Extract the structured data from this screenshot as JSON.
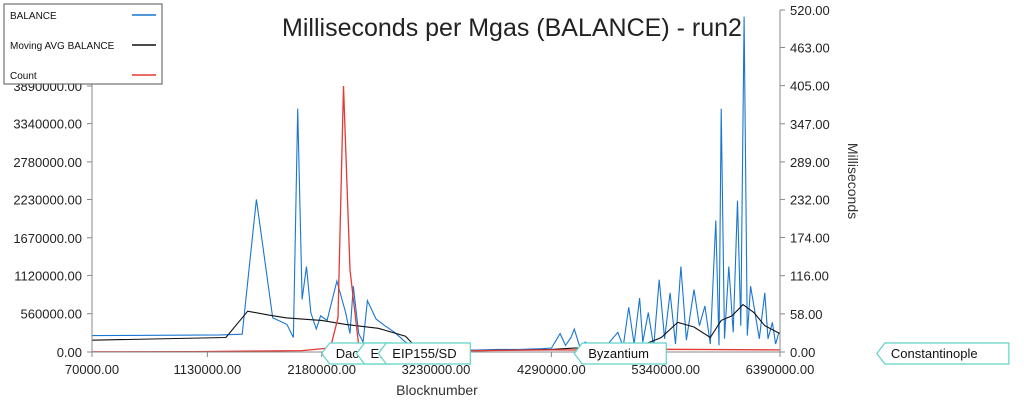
{
  "chart_data": {
    "type": "line",
    "title": "Milliseconds per Mgas (BALANCE) - run2",
    "xlabel": "Blocknumber",
    "ylabel_right": "Milliseconds",
    "ylabel_left": "",
    "xlim": [
      70000,
      6390000
    ],
    "ylim_left": [
      0,
      3890000
    ],
    "ylim_right": [
      0,
      520
    ],
    "x_ticks": [
      "70000.00",
      "1130000.00",
      "2180000.00",
      "3230000.00",
      "4290000.00",
      "5340000.00",
      "6390000.00"
    ],
    "y_left_ticks": [
      "0.00",
      "560000.00",
      "1120000.00",
      "1670000.00",
      "2230000.00",
      "2780000.00",
      "3340000.00",
      "3890000.00"
    ],
    "y_right_ticks": [
      "0.00",
      "58.00",
      "116.00",
      "174.00",
      "232.00",
      "289.00",
      "347.00",
      "405.00",
      "463.00",
      "520.00"
    ],
    "legend_position": "top-left",
    "series": [
      {
        "name": "BALANCE",
        "axis": "right",
        "color": "#1976d2",
        "points": [
          [
            70000,
            25
          ],
          [
            1250000,
            26
          ],
          [
            1450000,
            27
          ],
          [
            1580000,
            232
          ],
          [
            1730000,
            52
          ],
          [
            1860000,
            42
          ],
          [
            1920000,
            22
          ],
          [
            1960000,
            370
          ],
          [
            2000000,
            80
          ],
          [
            2040000,
            130
          ],
          [
            2080000,
            60
          ],
          [
            2130000,
            35
          ],
          [
            2170000,
            55
          ],
          [
            2230000,
            48
          ],
          [
            2320000,
            108
          ],
          [
            2400000,
            60
          ],
          [
            2440000,
            28
          ],
          [
            2470000,
            100
          ],
          [
            2520000,
            28
          ],
          [
            2560000,
            15
          ],
          [
            2600000,
            78
          ],
          [
            2680000,
            50
          ],
          [
            2760000,
            40
          ],
          [
            2850000,
            30
          ],
          [
            2950000,
            15
          ],
          [
            3060000,
            7
          ],
          [
            3230000,
            4
          ],
          [
            3400000,
            3
          ],
          [
            3600000,
            3
          ],
          [
            3800000,
            4
          ],
          [
            4000000,
            4
          ],
          [
            4200000,
            5
          ],
          [
            4290000,
            6
          ],
          [
            4370000,
            28
          ],
          [
            4420000,
            10
          ],
          [
            4470000,
            22
          ],
          [
            4500000,
            35
          ],
          [
            4550000,
            8
          ],
          [
            4600000,
            15
          ],
          [
            4700000,
            6
          ],
          [
            4800000,
            10
          ],
          [
            4900000,
            30
          ],
          [
            4950000,
            8
          ],
          [
            5000000,
            68
          ],
          [
            5050000,
            12
          ],
          [
            5100000,
            82
          ],
          [
            5130000,
            15
          ],
          [
            5180000,
            60
          ],
          [
            5230000,
            8
          ],
          [
            5280000,
            110
          ],
          [
            5330000,
            20
          ],
          [
            5380000,
            90
          ],
          [
            5430000,
            12
          ],
          [
            5480000,
            130
          ],
          [
            5530000,
            18
          ],
          [
            5600000,
            95
          ],
          [
            5650000,
            40
          ],
          [
            5700000,
            70
          ],
          [
            5750000,
            12
          ],
          [
            5800000,
            200
          ],
          [
            5830000,
            10
          ],
          [
            5850000,
            370
          ],
          [
            5880000,
            20
          ],
          [
            5920000,
            130
          ],
          [
            5960000,
            30
          ],
          [
            6000000,
            230
          ],
          [
            6030000,
            40
          ],
          [
            6060000,
            510
          ],
          [
            6090000,
            25
          ],
          [
            6120000,
            100
          ],
          [
            6150000,
            70
          ],
          [
            6200000,
            20
          ],
          [
            6250000,
            90
          ],
          [
            6280000,
            20
          ],
          [
            6320000,
            45
          ],
          [
            6350000,
            12
          ],
          [
            6380000,
            30
          ]
        ]
      },
      {
        "name": "Moving AVG BALANCE",
        "axis": "right",
        "color": "#111111",
        "points": [
          [
            70000,
            18
          ],
          [
            1300000,
            22
          ],
          [
            1500000,
            62
          ],
          [
            1700000,
            56
          ],
          [
            1850000,
            52
          ],
          [
            2000000,
            50
          ],
          [
            2180000,
            48
          ],
          [
            2400000,
            42
          ],
          [
            2700000,
            36
          ],
          [
            2950000,
            24
          ],
          [
            3060000,
            5
          ],
          [
            3230000,
            3
          ],
          [
            3600000,
            2
          ],
          [
            4000000,
            3
          ],
          [
            4290000,
            4
          ],
          [
            4500000,
            6
          ],
          [
            4800000,
            6
          ],
          [
            5000000,
            8
          ],
          [
            5150000,
            12
          ],
          [
            5300000,
            22
          ],
          [
            5450000,
            45
          ],
          [
            5600000,
            38
          ],
          [
            5750000,
            22
          ],
          [
            5850000,
            48
          ],
          [
            5950000,
            55
          ],
          [
            6050000,
            72
          ],
          [
            6150000,
            60
          ],
          [
            6250000,
            40
          ],
          [
            6390000,
            28
          ]
        ]
      },
      {
        "name": "Count",
        "axis": "left",
        "color": "#e53935",
        "points": [
          [
            70000,
            3000
          ],
          [
            1000000,
            5000
          ],
          [
            2000000,
            20000
          ],
          [
            2260000,
            60000
          ],
          [
            2330000,
            500000
          ],
          [
            2380000,
            3890000
          ],
          [
            2440000,
            1200000
          ],
          [
            2520000,
            100000
          ],
          [
            2700000,
            20000
          ],
          [
            3230000,
            15000
          ],
          [
            4290000,
            30000
          ],
          [
            5000000,
            25000
          ],
          [
            5340000,
            40000
          ],
          [
            6390000,
            30000
          ]
        ]
      }
    ],
    "markers": [
      {
        "label": "DaoFor",
        "x": 2180000
      },
      {
        "label": "EI",
        "x": 2500000
      },
      {
        "label": "EIP155/SD",
        "x": 2700000
      },
      {
        "label": "Byzantium",
        "x": 4500000
      },
      {
        "label": "Constantinople",
        "x": 7280000
      }
    ]
  }
}
